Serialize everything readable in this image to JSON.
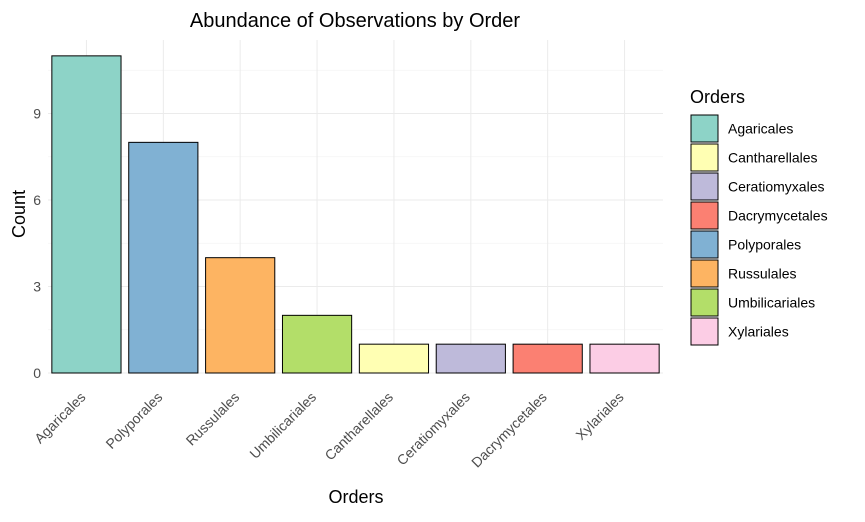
{
  "chart_data": {
    "type": "bar",
    "title": "Abundance of Observations by Order",
    "xlabel": "Orders",
    "ylabel": "Count",
    "ylim": [
      0,
      11.55
    ],
    "yticks": [
      0,
      3,
      6,
      9
    ],
    "grid": true,
    "legend_position": "right",
    "categories": [
      "Agaricales",
      "Polyporales",
      "Russulales",
      "Umbilicariales",
      "Cantharellales",
      "Ceratiomyxales",
      "Dacrymycetales",
      "Xylariales"
    ],
    "values": [
      11,
      8,
      4,
      2,
      1,
      1,
      1,
      1
    ],
    "colors": {
      "Agaricales": "#8dd3c7",
      "Cantharellales": "#ffffb3",
      "Ceratiomyxales": "#bebada",
      "Dacrymycetales": "#fb8072",
      "Polyporales": "#80b1d3",
      "Russulales": "#fdb462",
      "Umbilicariales": "#b3de69",
      "Xylariales": "#fccde5"
    },
    "legend": {
      "title": "Orders",
      "entries": [
        "Agaricales",
        "Cantharellales",
        "Ceratiomyxales",
        "Dacrymycetales",
        "Polyporales",
        "Russulales",
        "Umbilicariales",
        "Xylariales"
      ]
    }
  }
}
